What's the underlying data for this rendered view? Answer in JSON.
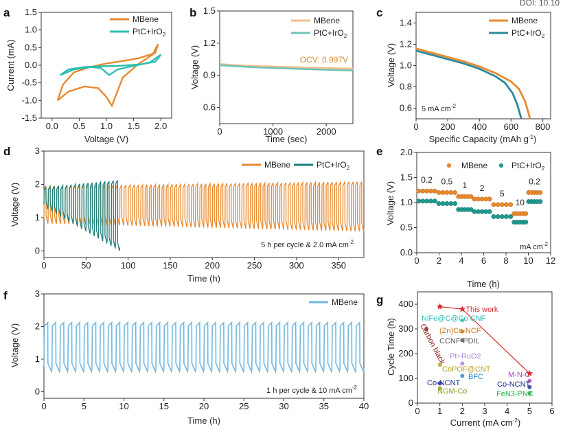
{
  "header": {
    "doi": "DOI: 10.10"
  },
  "colors": {
    "mbene": "#E8892E",
    "mbene_light": "#F4C08A",
    "ptc": "#2ABFB0",
    "ptc_dark": "#1D7F7A",
    "ptc_light": "#6FC4B8",
    "f_line": "#6CB8E0",
    "work": "#D42A2A"
  },
  "chart_data": [
    {
      "panel": "a",
      "type": "line",
      "xlabel": "Voltage (V)",
      "ylabel": "Current (mA)",
      "xlim": [
        -0.2,
        2.2
      ],
      "ylim": [
        -1.5,
        1.5
      ],
      "xticks": [
        0.0,
        0.5,
        1.0,
        1.5,
        2.0
      ],
      "yticks": [
        -1.5,
        -1.0,
        -0.5,
        0.0,
        0.5,
        1.0,
        1.5
      ],
      "legend": [
        "MBene",
        "PtC+IrO2"
      ],
      "series": [
        {
          "name": "MBene",
          "color": "#E8892E",
          "x": [
            0.1,
            0.3,
            0.6,
            0.85,
            1.0,
            1.1,
            1.3,
            1.6,
            1.85,
            1.95,
            1.9,
            1.6,
            1.3,
            1.0,
            0.7,
            0.4,
            0.2,
            0.1
          ],
          "y": [
            -1.0,
            -0.75,
            -0.6,
            -0.65,
            -0.9,
            -1.15,
            -0.35,
            0.05,
            0.3,
            0.6,
            0.35,
            0.2,
            0.12,
            0.05,
            -0.05,
            -0.2,
            -0.55,
            -1.0
          ]
        },
        {
          "name": "PtC+IrO2",
          "color": "#2ABFB0",
          "x": [
            0.15,
            0.4,
            0.7,
            0.9,
            1.05,
            1.2,
            1.5,
            1.8,
            2.0,
            1.9,
            1.6,
            1.2,
            0.9,
            0.6,
            0.3,
            0.15
          ],
          "y": [
            -0.28,
            -0.12,
            -0.05,
            -0.08,
            -0.28,
            -0.12,
            -0.02,
            0.08,
            0.3,
            0.1,
            0.02,
            -0.02,
            -0.03,
            -0.05,
            -0.12,
            -0.28
          ]
        }
      ]
    },
    {
      "panel": "b",
      "type": "line",
      "xlabel": "Time (sec)",
      "ylabel": "Voltage (V)",
      "xlim": [
        0,
        2500
      ],
      "ylim": [
        0.45,
        1.5
      ],
      "xticks": [
        0,
        1000,
        2000
      ],
      "yticks": [
        0.6,
        0.9,
        1.2,
        1.5
      ],
      "legend": [
        "MBene",
        "PtC+IrO2"
      ],
      "annotation": "OCV: 0.997V",
      "series": [
        {
          "name": "MBene",
          "color": "#F4C08A",
          "x": [
            0,
            300,
            800,
            1500,
            2000,
            2500
          ],
          "y": [
            1.005,
            0.995,
            0.985,
            0.975,
            0.968,
            0.962
          ]
        },
        {
          "name": "PtC+IrO2",
          "color": "#6FC4B8",
          "x": [
            0,
            300,
            800,
            1500,
            2000,
            2500
          ],
          "y": [
            0.995,
            0.985,
            0.972,
            0.96,
            0.952,
            0.945
          ]
        }
      ]
    },
    {
      "panel": "c",
      "type": "line",
      "xlabel": "Specific Capacity (mAh g-1)",
      "ylabel": "Voltage (V)",
      "xlim": [
        0,
        850
      ],
      "ylim": [
        0.5,
        1.5
      ],
      "xticks": [
        0,
        200,
        400,
        600,
        800
      ],
      "yticks": [
        0.6,
        0.8,
        1.0,
        1.2,
        1.4
      ],
      "legend": [
        "MBene",
        "PtC+IrO2"
      ],
      "annotation": "5 mA cm-2",
      "series": [
        {
          "name": "MBene",
          "color": "#E8892E",
          "x": [
            0,
            100,
            200,
            300,
            400,
            500,
            600,
            650,
            690,
            720
          ],
          "y": [
            1.16,
            1.12,
            1.08,
            1.04,
            0.99,
            0.93,
            0.85,
            0.78,
            0.66,
            0.5
          ]
        },
        {
          "name": "PtC+IrO2",
          "color": "#2A8A9A",
          "x": [
            0,
            100,
            200,
            300,
            400,
            500,
            560,
            610,
            640,
            665
          ],
          "y": [
            1.14,
            1.1,
            1.06,
            1.02,
            0.97,
            0.9,
            0.84,
            0.74,
            0.63,
            0.5
          ]
        }
      ]
    },
    {
      "panel": "d",
      "type": "line",
      "xlabel": "Time (h)",
      "ylabel": "Voltage (V)",
      "xlim": [
        0,
        380
      ],
      "ylim": [
        -0.2,
        3
      ],
      "xticks": [
        0,
        50,
        100,
        150,
        200,
        250,
        300,
        350
      ],
      "yticks": [
        0,
        1,
        2,
        3
      ],
      "legend": [
        "MBene",
        "PtC+IrO2"
      ],
      "annotation": "5 h per cycle & 2.0 mA cm-2",
      "series": [
        {
          "name": "MBene",
          "color": "#E8892E",
          "cycle_h": 5,
          "t_end": 380,
          "charge_start": 1.95,
          "charge_end": 2.08,
          "discharge_start": 0.82,
          "discharge_end": 0.58
        },
        {
          "name": "PtC+IrO2",
          "color": "#1D7F7A",
          "cycle_h": 5,
          "t_end": 88,
          "charge_start": 1.92,
          "charge_end": 2.12,
          "discharge_start": 1.25,
          "discharge_end": 0.0
        }
      ]
    },
    {
      "panel": "e",
      "type": "scatter",
      "xlabel": "Time (h)",
      "ylabel": "Voltage (V)",
      "xlim": [
        0,
        12
      ],
      "ylim": [
        0,
        2.0
      ],
      "xticks": [
        0,
        2,
        4,
        6,
        8,
        10,
        12
      ],
      "yticks": [
        0.0,
        0.5,
        1.0,
        1.5,
        2.0
      ],
      "legend": [
        "MBene",
        "PtC+IrO2"
      ],
      "unit_label": "mA cm-2",
      "rate_labels": [
        "0.2",
        "0.5",
        "1",
        "2",
        "5",
        "10",
        "0.2"
      ],
      "segments": [
        {
          "t0": 0.0,
          "t1": 1.8,
          "mbene": 1.23,
          "ptc": 1.03
        },
        {
          "t0": 1.8,
          "t1": 3.6,
          "mbene": 1.2,
          "ptc": 0.98
        },
        {
          "t0": 3.6,
          "t1": 5.0,
          "mbene": 1.12,
          "ptc": 0.86
        },
        {
          "t0": 5.0,
          "t1": 6.7,
          "mbene": 1.07,
          "ptc": 0.82
        },
        {
          "t0": 6.7,
          "t1": 8.6,
          "mbene": 0.96,
          "ptc": 0.72
        },
        {
          "t0": 8.6,
          "t1": 9.9,
          "mbene": 0.78,
          "ptc": 0.61
        },
        {
          "t0": 9.9,
          "t1": 11.2,
          "mbene": 1.2,
          "ptc": 1.02
        }
      ]
    },
    {
      "panel": "f",
      "type": "line",
      "xlabel": "Time (h)",
      "ylabel": "Voltage (V)",
      "xlim": [
        0,
        40
      ],
      "ylim": [
        -0.2,
        3
      ],
      "xticks": [
        0,
        5,
        10,
        15,
        20,
        25,
        30,
        35,
        40
      ],
      "yticks": [
        0,
        1,
        2,
        3
      ],
      "legend": [
        "MBene"
      ],
      "annotation": "1 h per cycle & 10 mA cm-2",
      "series": [
        {
          "name": "MBene",
          "color": "#6CB8E0",
          "cycle_h": 1,
          "t_end": 40,
          "charge_v": 2.12,
          "discharge_v": 0.62
        }
      ]
    },
    {
      "panel": "g",
      "type": "scatter",
      "xlabel": "Current (mA cm-2)",
      "ylabel": "Cycle Time (h)",
      "xlim": [
        0,
        6
      ],
      "ylim": [
        0,
        450
      ],
      "xticks": [
        0,
        1,
        2,
        3,
        4,
        5,
        6
      ],
      "yticks": [
        0,
        100,
        200,
        300,
        400
      ],
      "this_work": {
        "label": "This work",
        "points": [
          [
            1,
            390
          ],
          [
            2,
            380
          ],
          [
            5,
            120
          ]
        ]
      },
      "points": [
        {
          "label": "NiFe@C@Co CNF",
          "x": 2,
          "y": 335,
          "color": "#2ABFB0"
        },
        {
          "label": "(Zn)Co-NCF",
          "x": 2,
          "y": 290,
          "color": "#C87A1A"
        },
        {
          "label": "CCNF-PDIL",
          "x": 2,
          "y": 255,
          "color": "#555555"
        },
        {
          "label": "Carbon black",
          "x": 0.4,
          "y": 300,
          "color": "#8B1A1A"
        },
        {
          "label": "Pt+RuO2",
          "x": 2,
          "y": 160,
          "color": "#A880D8"
        },
        {
          "label": "CoPOF@CNT",
          "x": 1,
          "y": 155,
          "color": "#B8A020"
        },
        {
          "label": "BFC",
          "x": 2,
          "y": 110,
          "color": "#2288CC"
        },
        {
          "label": "Co-NCNT",
          "x": 1,
          "y": 80,
          "color": "#1A2A8C"
        },
        {
          "label": "NGM-Co",
          "x": 1,
          "y": 60,
          "color": "#88A020"
        },
        {
          "label": "M-N-C",
          "x": 5,
          "y": 90,
          "color": "#B040B0"
        },
        {
          "label": "Co-NCNT",
          "x": 5,
          "y": 65,
          "color": "#1A2A8C"
        },
        {
          "label": "FeN3-PNC",
          "x": 5,
          "y": 40,
          "color": "#22AA44"
        }
      ]
    }
  ],
  "panel_letters": [
    "a",
    "b",
    "c",
    "d",
    "e",
    "f",
    "g"
  ],
  "texts": {
    "a_xlabel": "Voltage (V)",
    "a_ylabel": "Current (mA)",
    "b_xlabel": "Time (sec)",
    "b_ylabel": "Voltage (V)",
    "b_ocv": "OCV: 0.997V",
    "c_xlabel": "Specific Capacity (mAh g",
    "c_xlabel_sup": "-1",
    "c_xlabel_end": ")",
    "c_ylabel": "Voltage (V)",
    "c_note": "5 mA cm",
    "d_xlabel": "Time (h)",
    "d_ylabel": "Voltage (V)",
    "d_note": "5 h per cycle & 2.0 mA cm",
    "e_xlabel": "Time (h)",
    "e_ylabel": "Voltage (V)",
    "e_unit": "mA cm",
    "f_xlabel": "Time (h)",
    "f_ylabel": "Voltage (V)",
    "f_note": "1 h per cycle & 10 mA cm",
    "g_xlabel": "Current (mA cm",
    "g_ylabel": "Cycle Time (h)",
    "leg_mbene": "MBene",
    "leg_ptc": "PtC+IrO",
    "leg_ptc_sub": "2",
    "sup_m2": "-2"
  }
}
